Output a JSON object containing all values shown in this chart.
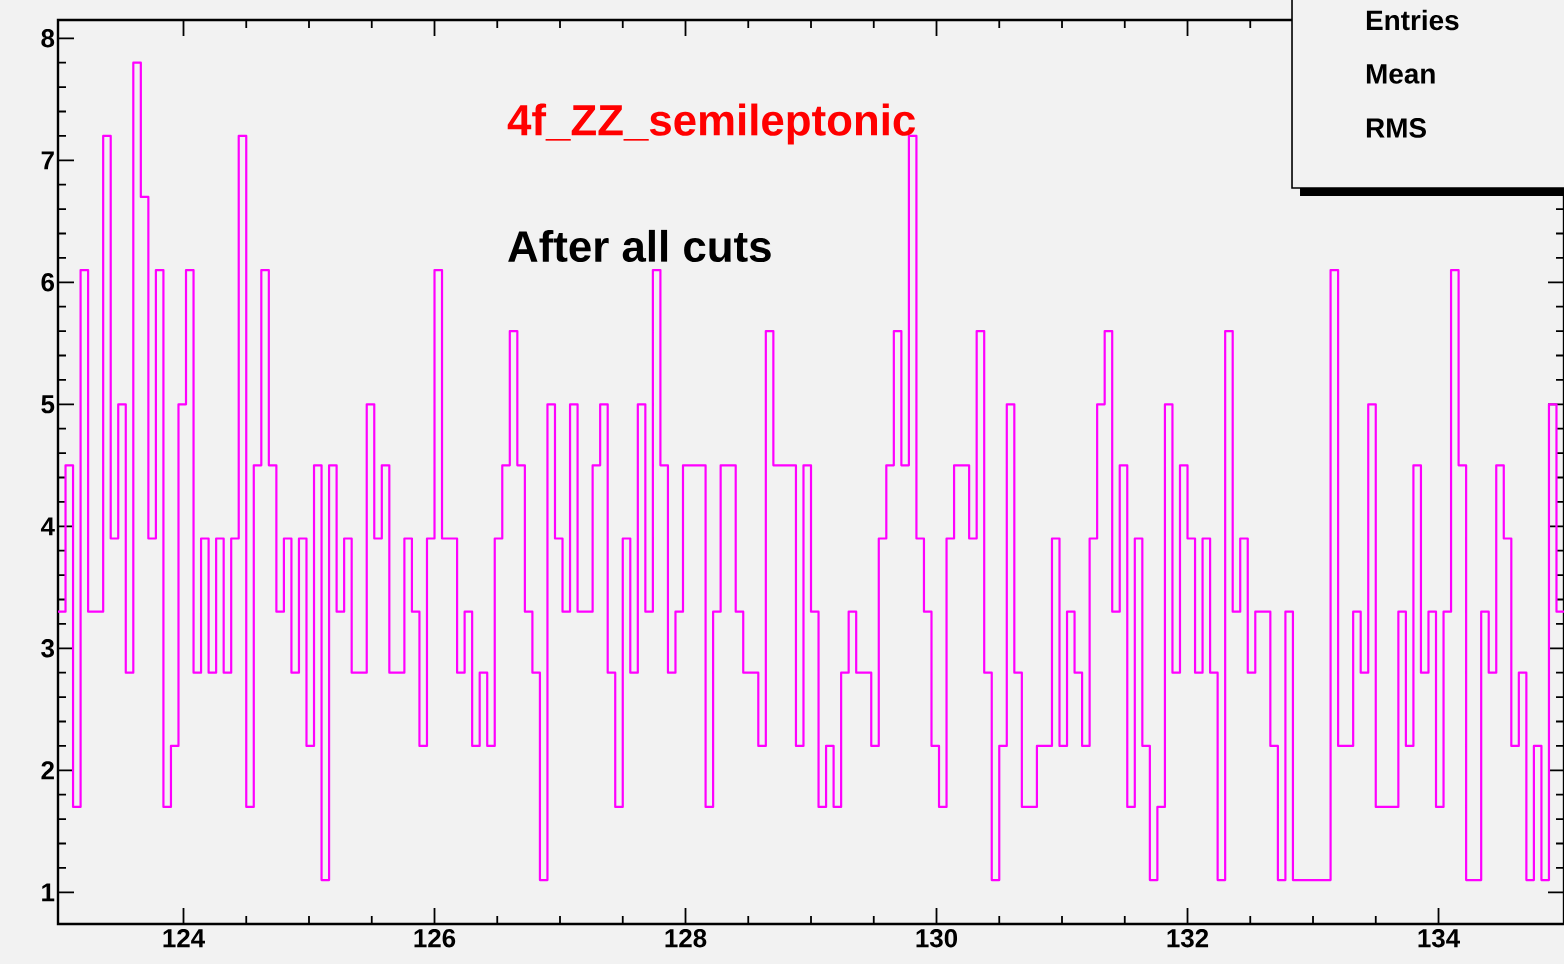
{
  "chart_data": {
    "type": "histogram",
    "title": "4f_ZZ_semileptonic",
    "subtitle": "After all cuts",
    "annotations": [
      "Entries",
      "Mean",
      "RMS"
    ],
    "color": "#ff00ff",
    "bins": [
      123,
      123.06,
      123.12,
      123.18,
      123.24,
      123.3,
      123.36,
      123.42,
      123.48,
      123.54,
      123.6,
      123.66,
      123.72,
      123.78,
      123.84,
      123.9,
      123.96,
      124.02,
      124.08,
      124.14,
      124.2,
      124.26,
      124.32,
      124.38,
      124.44,
      124.5,
      124.56,
      124.62,
      124.68,
      124.74,
      124.8,
      124.86,
      124.92,
      124.98,
      125.04,
      125.1,
      125.16,
      125.22,
      125.28,
      125.34,
      125.4,
      125.46,
      125.52,
      125.58,
      125.64,
      125.7,
      125.76,
      125.82,
      125.88,
      125.94,
      126,
      126.06,
      126.12,
      126.18,
      126.24,
      126.3,
      126.36,
      126.42,
      126.48,
      126.54,
      126.6,
      126.66,
      126.72,
      126.78,
      126.84,
      126.9,
      126.96,
      127.02,
      127.08,
      127.14,
      127.2,
      127.26,
      127.32,
      127.38,
      127.44,
      127.5,
      127.56,
      127.62,
      127.68,
      127.74,
      127.8,
      127.86,
      127.92,
      127.98,
      128.04,
      128.1,
      128.16,
      128.22,
      128.28,
      128.34,
      128.4,
      128.46,
      128.52,
      128.58,
      128.64,
      128.7,
      128.76,
      128.82,
      128.88,
      128.94,
      129,
      129.06,
      129.12,
      129.18,
      129.24,
      129.3,
      129.36,
      129.42,
      129.48,
      129.54,
      129.6,
      129.66,
      129.72,
      129.78,
      129.84,
      129.9,
      129.96,
      130.02,
      130.08,
      130.14,
      130.2,
      130.26,
      130.32,
      130.38,
      130.44,
      130.5,
      130.56,
      130.62,
      130.68,
      130.74,
      130.8,
      130.86,
      130.92,
      130.98,
      131.04,
      131.1,
      131.16,
      131.22,
      131.28,
      131.34,
      131.4,
      131.46,
      131.52,
      131.58,
      131.64,
      131.7,
      131.76,
      131.82,
      131.88,
      131.94,
      132,
      132.06,
      132.12,
      132.18,
      132.24,
      132.3,
      132.36,
      132.42,
      132.48,
      132.54,
      132.6,
      132.66,
      132.72,
      132.78,
      132.84,
      132.9,
      132.96,
      133.02,
      133.08,
      133.14,
      133.2,
      133.26,
      133.32,
      133.38,
      133.44,
      133.5,
      133.56,
      133.62,
      133.68,
      133.74,
      133.8,
      133.86,
      133.92,
      133.98,
      134.04,
      134.1,
      134.16,
      134.22,
      134.28,
      134.34,
      134.4,
      134.46,
      134.52,
      134.58,
      134.64,
      134.7,
      134.76,
      134.82,
      134.88,
      134.94,
      135
    ],
    "values": [
      3.3,
      4.5,
      1.7,
      6.1,
      3.3,
      3.3,
      7.2,
      3.9,
      5.0,
      2.8,
      7.8,
      6.7,
      3.9,
      6.1,
      1.7,
      2.2,
      5.0,
      6.1,
      2.8,
      3.9,
      2.8,
      3.9,
      2.8,
      3.9,
      7.2,
      1.7,
      4.5,
      6.1,
      4.5,
      3.3,
      3.9,
      2.8,
      3.9,
      2.2,
      4.5,
      1.1,
      4.5,
      3.3,
      3.9,
      2.8,
      2.8,
      5.0,
      3.9,
      4.5,
      2.8,
      2.8,
      3.9,
      3.3,
      2.2,
      3.9,
      6.1,
      3.9,
      3.9,
      2.8,
      3.3,
      2.2,
      2.8,
      2.2,
      3.9,
      4.5,
      5.6,
      4.5,
      3.3,
      2.8,
      1.1,
      5.0,
      3.9,
      3.3,
      5.0,
      3.3,
      3.3,
      4.5,
      5.0,
      2.8,
      1.7,
      3.9,
      2.8,
      5.0,
      3.3,
      6.1,
      4.5,
      2.8,
      3.3,
      4.5,
      4.5,
      4.5,
      1.7,
      3.3,
      4.5,
      4.5,
      3.3,
      2.8,
      2.8,
      2.2,
      5.6,
      4.5,
      4.5,
      4.5,
      2.2,
      4.5,
      3.3,
      1.7,
      2.2,
      1.7,
      2.8,
      3.3,
      2.8,
      2.8,
      2.2,
      3.9,
      4.5,
      5.6,
      4.5,
      7.2,
      3.9,
      3.3,
      2.2,
      1.7,
      3.9,
      4.5,
      4.5,
      3.9,
      5.6,
      2.8,
      1.1,
      2.2,
      5.0,
      2.8,
      1.7,
      1.7,
      2.2,
      2.2,
      3.9,
      2.2,
      3.3,
      2.8,
      2.2,
      3.9,
      5.0,
      5.6,
      3.3,
      4.5,
      1.7,
      3.9,
      2.2,
      1.1,
      1.7,
      5.0,
      2.8,
      4.5,
      3.9,
      2.8,
      3.9,
      2.8,
      1.1,
      5.6,
      3.3,
      3.9,
      2.8,
      3.3,
      3.3,
      2.2,
      1.1,
      3.3,
      1.1,
      1.1,
      1.1,
      1.1,
      1.1,
      6.1,
      2.2,
      2.2,
      3.3,
      2.8,
      5.0,
      1.7,
      1.7,
      1.7,
      3.3,
      2.2,
      4.5,
      2.8,
      3.3,
      1.7,
      3.3,
      6.1,
      4.5,
      1.1,
      1.1,
      3.3,
      2.8,
      4.5,
      3.9,
      2.2,
      2.8,
      1.1,
      2.2,
      1.1,
      5.0,
      3.3
    ],
    "xlim": [
      123,
      135
    ],
    "xticks": [
      124,
      126,
      128,
      130,
      132,
      134
    ],
    "ylim": [
      0.74,
      8.15
    ],
    "yticks": [
      1,
      2,
      3,
      4,
      5,
      6,
      7,
      8
    ],
    "grid": false
  }
}
